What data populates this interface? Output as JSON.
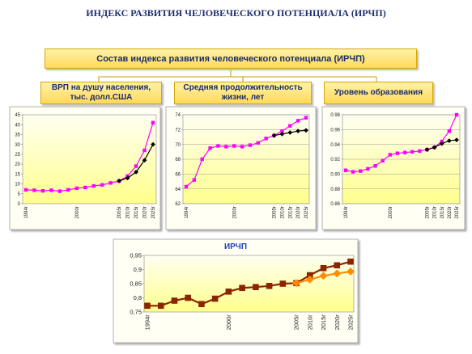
{
  "header": {
    "title": "ИНДЕКС РАЗВИТИЯ ЧЕЛОВЕЧЕСКОГО ПОТЕНЦИАЛА (ИРЧП)"
  },
  "main_box": {
    "label": "Состав индекса развития человеческого потенциала (ИРЧП)"
  },
  "boxes": [
    {
      "label": "ВРП на душу населения, тыс. долл.США"
    },
    {
      "label": "Средняя продолжительность жизни, лет"
    },
    {
      "label": "Уровень образования"
    }
  ],
  "chart_data": [
    {
      "type": "line",
      "categories": [
        "1994г",
        null,
        null,
        null,
        null,
        null,
        "2000г",
        null,
        null,
        null,
        null,
        "2005г",
        "2010г",
        "2015г",
        "2020г",
        "2025г"
      ],
      "series": [
        {
          "color": "#ff00ff",
          "marker": "square",
          "values": [
            7,
            6.8,
            6.5,
            6.8,
            6.3,
            7,
            7.8,
            8.2,
            9,
            9.5,
            10.5,
            11.5,
            14,
            19,
            27,
            41
          ]
        },
        {
          "color": "#000000",
          "marker": "diamond",
          "values": [
            null,
            null,
            null,
            null,
            null,
            null,
            null,
            null,
            null,
            null,
            null,
            11.5,
            13,
            16,
            22,
            30
          ]
        }
      ],
      "ylim": [
        0,
        45
      ],
      "yticks": [
        0,
        5,
        10,
        15,
        20,
        25,
        30,
        35,
        40,
        45
      ],
      "grid": false
    },
    {
      "type": "line",
      "categories": [
        "1994г",
        null,
        null,
        null,
        null,
        null,
        "2000г",
        null,
        null,
        null,
        null,
        "2005г",
        "2010г",
        "2015г",
        "2020г",
        "2025г"
      ],
      "series": [
        {
          "color": "#ff00ff",
          "marker": "square",
          "values": [
            64.3,
            65.2,
            68,
            69.5,
            69.8,
            69.7,
            69.8,
            69.7,
            69.9,
            70.2,
            70.8,
            71.2,
            71.8,
            72.5,
            73.2,
            73.6
          ]
        },
        {
          "color": "#000000",
          "marker": "diamond",
          "values": [
            null,
            null,
            null,
            null,
            null,
            null,
            null,
            null,
            null,
            null,
            null,
            71.2,
            71.4,
            71.6,
            71.8,
            71.9
          ]
        }
      ],
      "ylim": [
        62,
        74
      ],
      "yticks": [
        62,
        64,
        66,
        68,
        70,
        72,
        74
      ],
      "grid": true
    },
    {
      "type": "line",
      "categories": [
        "1994г",
        null,
        null,
        null,
        null,
        null,
        "2000г",
        null,
        null,
        null,
        null,
        "2005г",
        "2010г",
        "2015г",
        "2020г",
        "2025г"
      ],
      "series": [
        {
          "color": "#ff00ff",
          "marker": "square",
          "values": [
            0.905,
            0.903,
            0.904,
            0.907,
            0.911,
            0.918,
            0.926,
            0.928,
            0.929,
            0.93,
            0.931,
            0.933,
            0.936,
            0.944,
            0.958,
            0.98
          ]
        },
        {
          "color": "#000000",
          "marker": "diamond",
          "values": [
            null,
            null,
            null,
            null,
            null,
            null,
            null,
            null,
            null,
            null,
            null,
            0.933,
            0.936,
            0.941,
            0.945,
            0.946
          ]
        }
      ],
      "ylim": [
        0.86,
        0.98
      ],
      "yticks": [
        0.86,
        0.88,
        {
          "value": 0.9,
          "label": "0.90"
        },
        0.92,
        0.94,
        0.96,
        0.98
      ],
      "grid": true
    },
    {
      "type": "line",
      "title": "ИРЧП",
      "categories": [
        "1994г",
        null,
        null,
        null,
        null,
        null,
        "2000г",
        null,
        null,
        null,
        null,
        "2005г",
        "2010г",
        "2015г",
        "2020г",
        "2025г"
      ],
      "series": [
        {
          "color": "#8b2500",
          "marker": "square",
          "values": [
            0.772,
            0.772,
            0.79,
            0.8,
            0.778,
            0.797,
            0.822,
            0.835,
            0.838,
            0.842,
            0.85,
            0.852,
            0.88,
            0.905,
            0.915,
            0.928
          ]
        },
        {
          "color": "#ff8c00",
          "marker": "diamond",
          "values": [
            null,
            null,
            null,
            null,
            null,
            null,
            null,
            null,
            null,
            null,
            null,
            0.852,
            0.865,
            0.878,
            0.886,
            0.893
          ]
        }
      ],
      "ylim": [
        0.75,
        0.95
      ],
      "yticks": [
        {
          "value": 0.75,
          "label": "0,75"
        },
        {
          "value": 0.8,
          "label": "0,8"
        },
        {
          "value": 0.85,
          "label": "0,85"
        },
        {
          "value": 0.9,
          "label": "0,9"
        },
        {
          "value": 0.95,
          "label": "0,95"
        }
      ],
      "grid": false
    }
  ]
}
